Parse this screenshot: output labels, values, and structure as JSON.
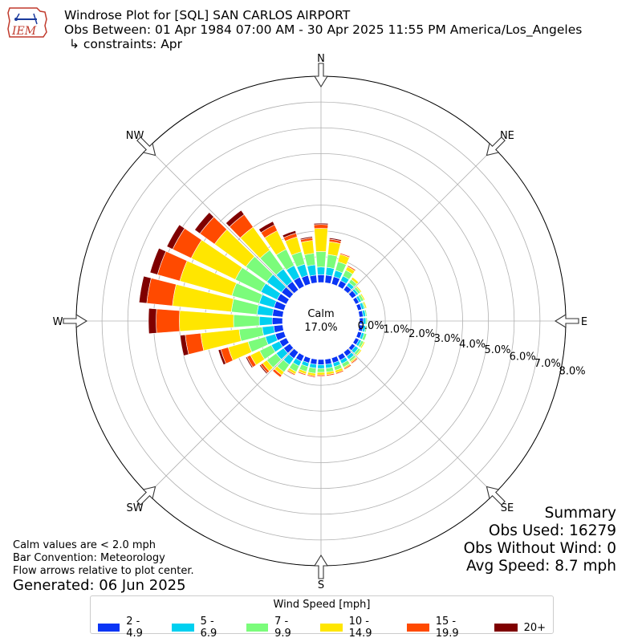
{
  "header": {
    "title": "Windrose Plot for [SQL] SAN CARLOS AIRPORT",
    "obs_between": "Obs Between: 01 Apr 1984 07:00 AM - 30 Apr 2025 11:55 PM America/Los_Angeles",
    "constraints": "↳ constraints: Apr",
    "logo_text": "IEM"
  },
  "notes": {
    "calm": "Calm values are < 2.0 mph",
    "convention": "Bar Convention: Meteorology",
    "flow": "Flow arrows relative to plot center.",
    "generated": "Generated: 06 Jun 2025"
  },
  "summary": {
    "title": "Summary",
    "obs_used": "Obs Used: 16279",
    "obs_without_wind": "Obs Without Wind: 0",
    "avg_speed": "Avg Speed: 8.7 mph"
  },
  "center": {
    "label": "Calm",
    "value": "17.0%"
  },
  "legend": {
    "title": "Wind Speed [mph]",
    "bins": [
      {
        "label": "2 - 4.9",
        "color": "#0a35f5"
      },
      {
        "label": "5 - 6.9",
        "color": "#00d0f0"
      },
      {
        "label": "7 - 9.9",
        "color": "#7bfc7b"
      },
      {
        "label": "10 - 14.9",
        "color": "#ffe600"
      },
      {
        "label": "15 - 19.9",
        "color": "#ff4a00"
      },
      {
        "label": "20+",
        "color": "#7f0000"
      }
    ]
  },
  "chart_data": {
    "type": "windrose",
    "calm_percent": 17.0,
    "radial_ticks": [
      "0.0%",
      "1.0%",
      "2.0%",
      "3.0%",
      "4.0%",
      "5.0%",
      "6.0%",
      "7.0%",
      "8.0%"
    ],
    "radial_max": 8.0,
    "compass_labels": [
      "N",
      "NE",
      "E",
      "SE",
      "S",
      "SW",
      "W",
      "NW"
    ],
    "directions_deg": [
      0,
      10,
      20,
      30,
      40,
      50,
      60,
      70,
      80,
      90,
      100,
      110,
      120,
      130,
      140,
      150,
      160,
      170,
      180,
      190,
      200,
      210,
      220,
      230,
      240,
      250,
      260,
      270,
      280,
      290,
      300,
      310,
      320,
      330,
      340,
      350
    ],
    "series": [
      {
        "name": "2 - 4.9",
        "values": [
          0.3,
          0.3,
          0.3,
          0.25,
          0.2,
          0.2,
          0.15,
          0.15,
          0.15,
          0.15,
          0.15,
          0.15,
          0.15,
          0.15,
          0.2,
          0.2,
          0.2,
          0.2,
          0.2,
          0.2,
          0.2,
          0.25,
          0.3,
          0.3,
          0.3,
          0.35,
          0.35,
          0.4,
          0.4,
          0.4,
          0.4,
          0.4,
          0.4,
          0.4,
          0.35,
          0.3
        ]
      },
      {
        "name": "5 - 6.9",
        "values": [
          0.3,
          0.3,
          0.25,
          0.2,
          0.15,
          0.1,
          0.1,
          0.1,
          0.1,
          0.1,
          0.1,
          0.1,
          0.1,
          0.15,
          0.15,
          0.15,
          0.15,
          0.15,
          0.15,
          0.15,
          0.15,
          0.2,
          0.3,
          0.35,
          0.35,
          0.4,
          0.45,
          0.5,
          0.6,
          0.6,
          0.7,
          0.7,
          0.6,
          0.5,
          0.45,
          0.4
        ]
      },
      {
        "name": "7 - 9.9",
        "values": [
          0.6,
          0.5,
          0.35,
          0.25,
          0.15,
          0.1,
          0.1,
          0.05,
          0.05,
          0.05,
          0.05,
          0.1,
          0.1,
          0.1,
          0.1,
          0.15,
          0.15,
          0.15,
          0.15,
          0.2,
          0.2,
          0.25,
          0.35,
          0.45,
          0.5,
          0.7,
          0.9,
          1.0,
          1.0,
          1.1,
          1.1,
          1.0,
          0.9,
          0.7,
          0.5,
          0.45
        ]
      },
      {
        "name": "10 - 14.9",
        "values": [
          0.9,
          0.5,
          0.3,
          0.15,
          0.1,
          0.05,
          0.05,
          0.05,
          0.0,
          0.0,
          0.0,
          0.0,
          0.05,
          0.05,
          0.05,
          0.05,
          0.1,
          0.1,
          0.1,
          0.1,
          0.1,
          0.1,
          0.15,
          0.2,
          0.4,
          0.8,
          1.5,
          2.1,
          2.3,
          2.1,
          1.9,
          1.5,
          1.1,
          0.8,
          0.6,
          0.5
        ]
      },
      {
        "name": "15 - 19.9",
        "values": [
          0.15,
          0.1,
          0.05,
          0.05,
          0.0,
          0.0,
          0.0,
          0.0,
          0.0,
          0.0,
          0.0,
          0.0,
          0.0,
          0.0,
          0.05,
          0.05,
          0.05,
          0.05,
          0.05,
          0.05,
          0.05,
          0.05,
          0.1,
          0.1,
          0.15,
          0.3,
          0.6,
          0.9,
          1.0,
          0.9,
          0.8,
          0.7,
          0.6,
          0.25,
          0.15,
          0.1
        ]
      },
      {
        "name": "20+",
        "values": [
          0.05,
          0.05,
          0.02,
          0.0,
          0.0,
          0.0,
          0.0,
          0.0,
          0.0,
          0.0,
          0.0,
          0.0,
          0.0,
          0.0,
          0.02,
          0.02,
          0.02,
          0.02,
          0.02,
          0.02,
          0.02,
          0.02,
          0.02,
          0.05,
          0.05,
          0.1,
          0.2,
          0.3,
          0.3,
          0.3,
          0.25,
          0.25,
          0.2,
          0.15,
          0.1,
          0.05
        ]
      }
    ]
  }
}
